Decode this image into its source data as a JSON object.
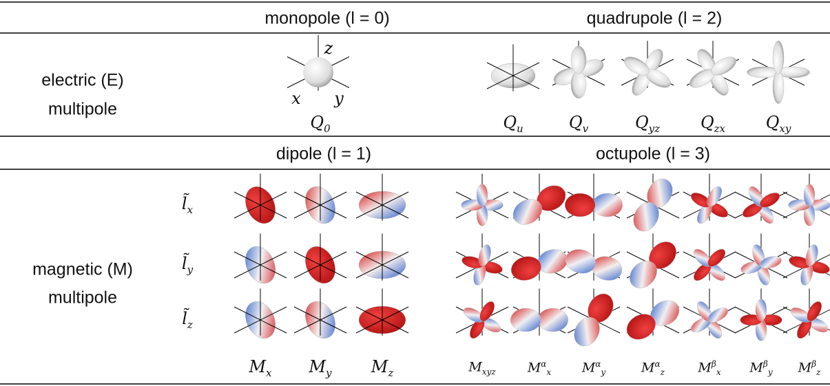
{
  "header_row_1": {
    "monopole": "monopole (l = 0)",
    "quadrupole": "quadrupole (l = 2)"
  },
  "electric": {
    "label": [
      "electric (E)",
      "multipole"
    ],
    "axes": {
      "x": "x",
      "y": "y",
      "z": "z"
    },
    "monopole": [
      {
        "base": "Q",
        "sub": "0"
      }
    ],
    "quadrupole": [
      {
        "base": "Q",
        "sub": "u"
      },
      {
        "base": "Q",
        "sub": "v"
      },
      {
        "base": "Q",
        "sub": "yz"
      },
      {
        "base": "Q",
        "sub": "zx"
      },
      {
        "base": "Q",
        "sub": "xy"
      }
    ]
  },
  "header_row_2": {
    "dipole": "dipole (l = 1)",
    "octupole": "octupole (l = 3)"
  },
  "magnetic": {
    "label": [
      "magnetic (M)",
      "multipole"
    ],
    "rows": [
      {
        "base": "l̃",
        "sub": "x"
      },
      {
        "base": "l̃",
        "sub": "y"
      },
      {
        "base": "l̃",
        "sub": "z"
      }
    ],
    "dipole": [
      {
        "base": "M",
        "sub": "x"
      },
      {
        "base": "M",
        "sub": "y"
      },
      {
        "base": "M",
        "sub": "z"
      }
    ],
    "octupole": [
      {
        "base": "M",
        "sub": "xyz"
      },
      {
        "base": "M",
        "sub": "x",
        "sup": "α"
      },
      {
        "base": "M",
        "sub": "y",
        "sup": "α"
      },
      {
        "base": "M",
        "sub": "z",
        "sup": "α"
      },
      {
        "base": "M",
        "sub": "x",
        "sup": "β"
      },
      {
        "base": "M",
        "sub": "y",
        "sup": "β"
      },
      {
        "base": "M",
        "sub": "z",
        "sup": "β"
      }
    ]
  }
}
